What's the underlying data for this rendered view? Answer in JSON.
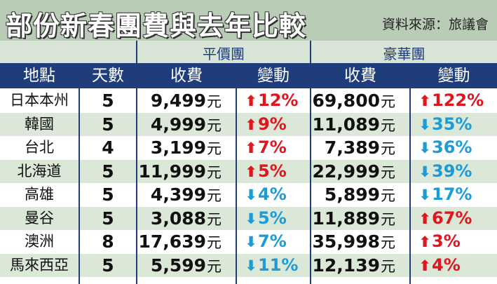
{
  "header": {
    "title": "部份新春團費與去年比較",
    "source": "資料來源：旅議會"
  },
  "groups": {
    "budget": "平價團",
    "luxury": "豪華團"
  },
  "columns": {
    "place": "地點",
    "days": "天數",
    "budget_fee": "收費",
    "budget_change": "變動",
    "luxury_fee": "收費",
    "luxury_change": "變動"
  },
  "currency_unit": "元",
  "colors": {
    "up": "#e0161e",
    "down": "#1c9bd7",
    "header": "#1f3d7a"
  },
  "rows": [
    {
      "place": "日本本州",
      "days": "5",
      "budget_fee": "9,499",
      "budget_change": "12%",
      "budget_dir": "up",
      "luxury_fee": "69,800",
      "luxury_change": "122%",
      "luxury_dir": "up"
    },
    {
      "place": "韓國",
      "days": "5",
      "budget_fee": "4,999",
      "budget_change": "9%",
      "budget_dir": "up",
      "luxury_fee": "11,089",
      "luxury_change": "35%",
      "luxury_dir": "down"
    },
    {
      "place": "台北",
      "days": "4",
      "budget_fee": "3,199",
      "budget_change": "7%",
      "budget_dir": "up",
      "luxury_fee": "7,389",
      "luxury_change": "36%",
      "luxury_dir": "down"
    },
    {
      "place": "北海道",
      "days": "5",
      "budget_fee": "11,999",
      "budget_change": "5%",
      "budget_dir": "up",
      "luxury_fee": "22,999",
      "luxury_change": "39%",
      "luxury_dir": "down"
    },
    {
      "place": "高雄",
      "days": "5",
      "budget_fee": "4,399",
      "budget_change": "4%",
      "budget_dir": "down",
      "luxury_fee": "5,899",
      "luxury_change": "17%",
      "luxury_dir": "down"
    },
    {
      "place": "曼谷",
      "days": "5",
      "budget_fee": "3,088",
      "budget_change": "5%",
      "budget_dir": "down",
      "luxury_fee": "11,889",
      "luxury_change": "67%",
      "luxury_dir": "up"
    },
    {
      "place": "澳洲",
      "days": "8",
      "budget_fee": "17,639",
      "budget_change": "7%",
      "budget_dir": "down",
      "luxury_fee": "35,998",
      "luxury_change": "3%",
      "luxury_dir": "up"
    },
    {
      "place": "馬來西亞",
      "days": "5",
      "budget_fee": "5,599",
      "budget_change": "11%",
      "budget_dir": "down",
      "luxury_fee": "12,139",
      "luxury_change": "4%",
      "luxury_dir": "up"
    }
  ]
}
